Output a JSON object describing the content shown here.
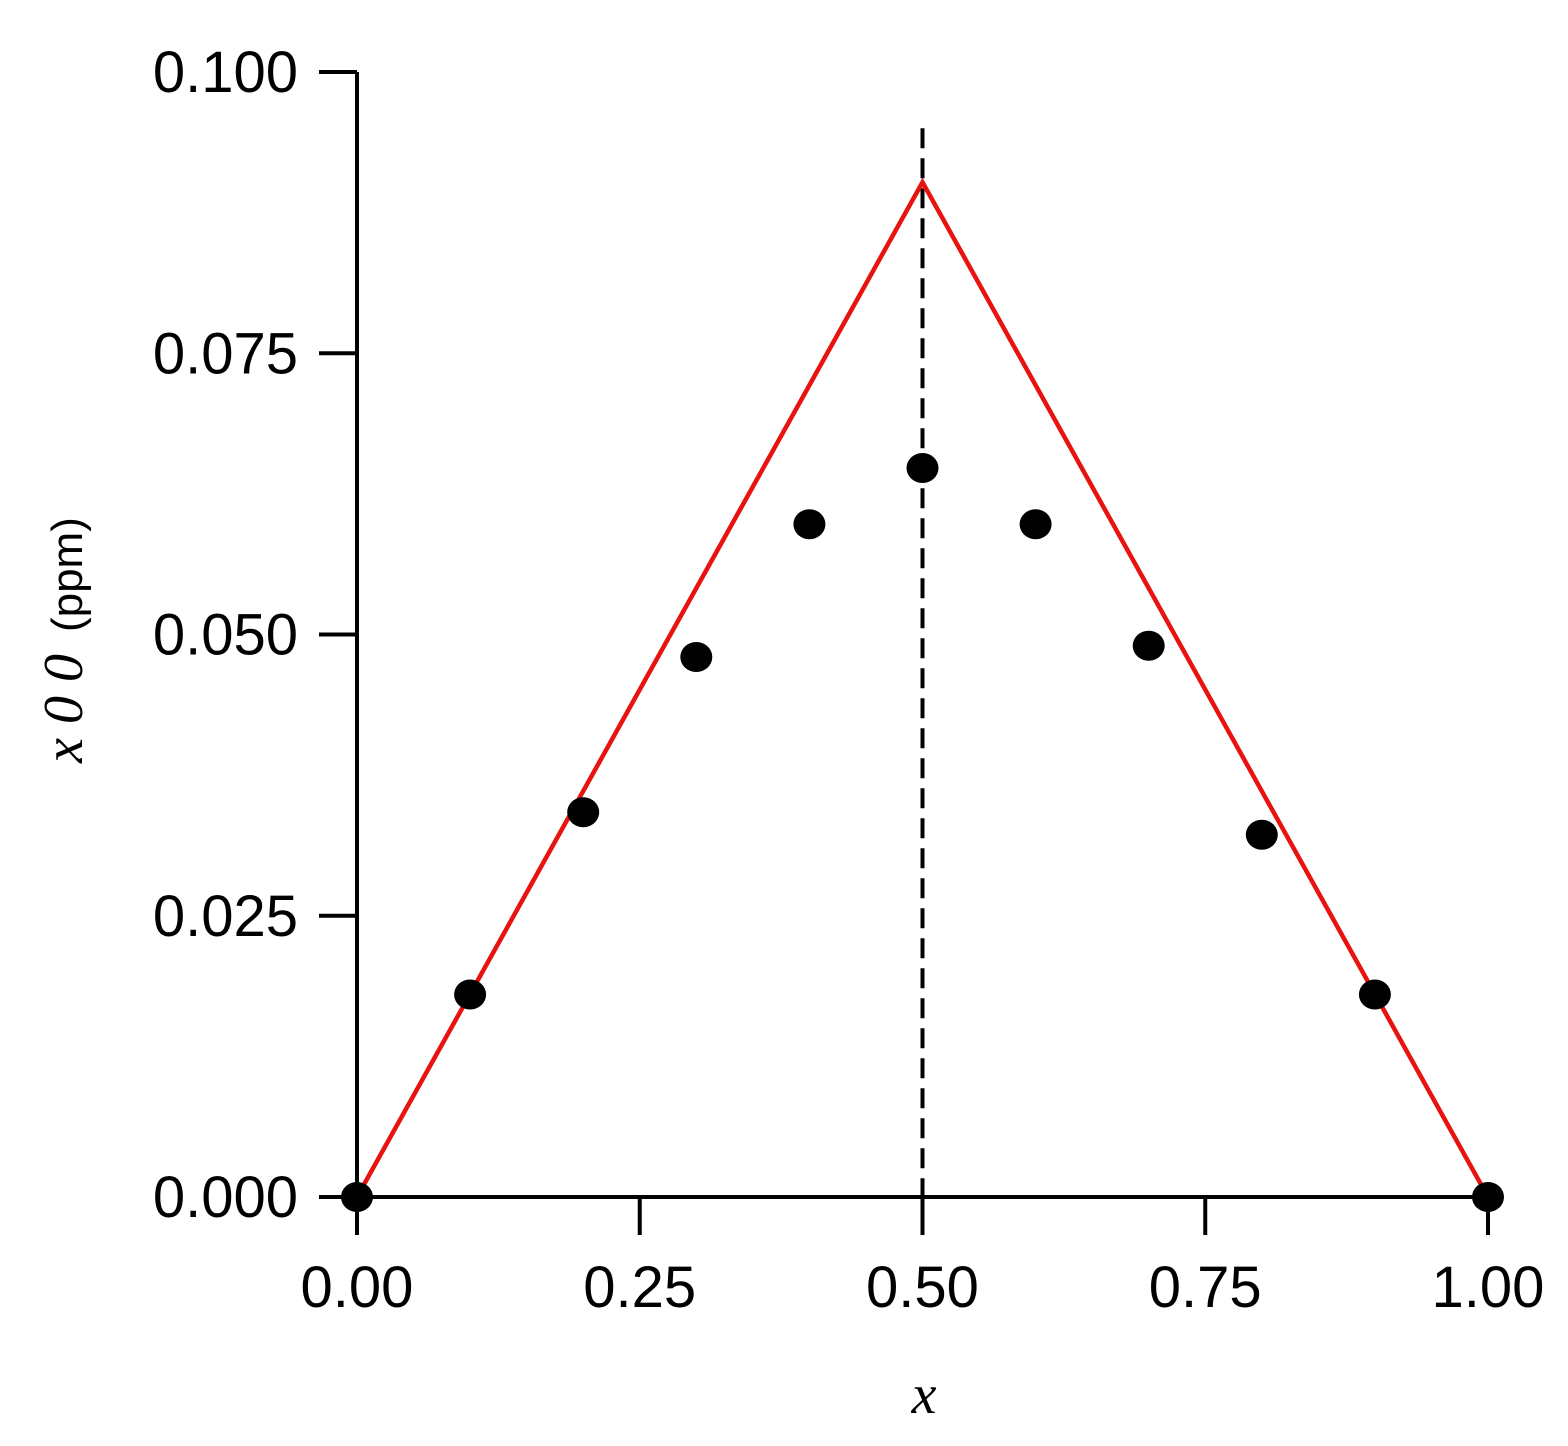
{
  "chart_data": {
    "type": "scatter",
    "title": "",
    "xlabel": "x",
    "ylabel": {
      "symbol": "x 0 0",
      "unit": "(ppm)"
    },
    "xlim": [
      0.0,
      1.0
    ],
    "ylim": [
      0.0,
      0.1
    ],
    "x_ticks": [
      "0.00",
      "0.25",
      "0.50",
      "0.75",
      "1.00"
    ],
    "y_ticks": [
      "0.000",
      "0.025",
      "0.050",
      "0.075",
      "0.100"
    ],
    "grid": false,
    "legend": "none",
    "points": {
      "color": "#000000",
      "x": [
        0.0,
        0.1,
        0.2,
        0.3,
        0.4,
        0.5,
        0.6,
        0.7,
        0.8,
        0.9,
        1.0
      ],
      "y": [
        0.0,
        0.018,
        0.0342,
        0.048,
        0.0598,
        0.0648,
        0.0598,
        0.049,
        0.0322,
        0.018,
        0.0
      ]
    },
    "line": {
      "color": "#e8130f",
      "x": [
        0.0,
        0.5,
        1.0
      ],
      "y": [
        0.0,
        0.0902,
        0.0
      ]
    },
    "reference_line": {
      "style": "dashed",
      "color": "#000000",
      "x": 0.5,
      "y_top": 0.095
    }
  }
}
